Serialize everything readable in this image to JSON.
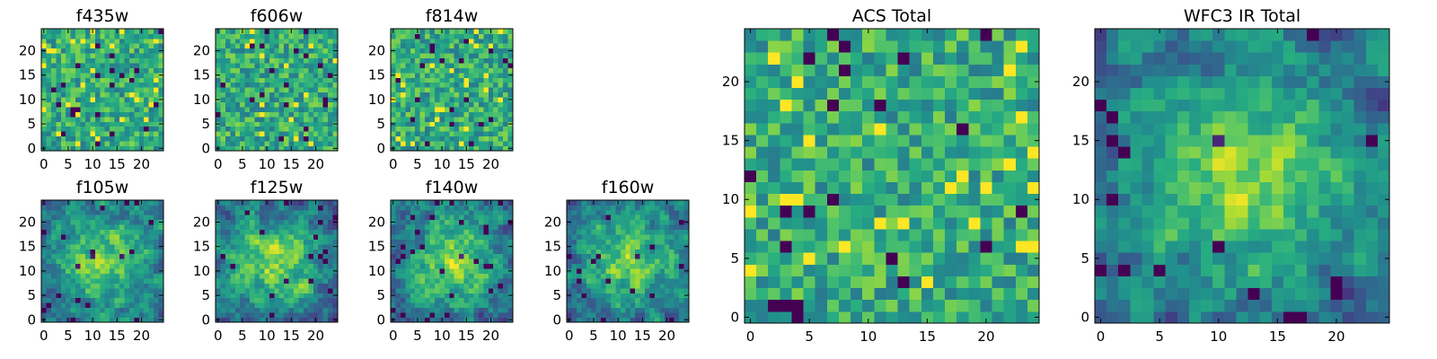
{
  "chart_data": [
    {
      "id": "f435w",
      "type": "heatmap",
      "title": "f435w",
      "rows": 25,
      "cols": 25,
      "xlim": [
        -0.5,
        24.5
      ],
      "ylim": [
        -0.5,
        24.5
      ],
      "xticks": [
        0,
        5,
        10,
        15,
        20
      ],
      "yticks": [
        0,
        5,
        10,
        15,
        20
      ],
      "colormap": "viridis",
      "structure": "noise",
      "seed": 11
    },
    {
      "id": "f606w",
      "type": "heatmap",
      "title": "f606w",
      "rows": 25,
      "cols": 25,
      "xlim": [
        -0.5,
        24.5
      ],
      "ylim": [
        -0.5,
        24.5
      ],
      "xticks": [
        0,
        5,
        10,
        15,
        20
      ],
      "yticks": [
        0,
        5,
        10,
        15,
        20
      ],
      "colormap": "viridis",
      "structure": "noise",
      "seed": 23
    },
    {
      "id": "f814w",
      "type": "heatmap",
      "title": "f814w",
      "rows": 25,
      "cols": 25,
      "xlim": [
        -0.5,
        24.5
      ],
      "ylim": [
        -0.5,
        24.5
      ],
      "xticks": [
        0,
        5,
        10,
        15,
        20
      ],
      "yticks": [
        0,
        5,
        10,
        15,
        20
      ],
      "colormap": "viridis",
      "structure": "noise",
      "seed": 37
    },
    {
      "id": "f105w",
      "type": "heatmap",
      "title": "f105w",
      "rows": 25,
      "cols": 25,
      "xlim": [
        -0.5,
        24.5
      ],
      "ylim": [
        -0.5,
        24.5
      ],
      "xticks": [
        0,
        5,
        10,
        15,
        20
      ],
      "yticks": [
        0,
        5,
        10,
        15,
        20
      ],
      "colormap": "viridis",
      "structure": "centered",
      "seed": 41
    },
    {
      "id": "f125w",
      "type": "heatmap",
      "title": "f125w",
      "rows": 25,
      "cols": 25,
      "xlim": [
        -0.5,
        24.5
      ],
      "ylim": [
        -0.5,
        24.5
      ],
      "xticks": [
        0,
        5,
        10,
        15,
        20
      ],
      "yticks": [
        0,
        5,
        10,
        15,
        20
      ],
      "colormap": "viridis",
      "structure": "centered",
      "seed": 53
    },
    {
      "id": "f140w",
      "type": "heatmap",
      "title": "f140w",
      "rows": 25,
      "cols": 25,
      "xlim": [
        -0.5,
        24.5
      ],
      "ylim": [
        -0.5,
        24.5
      ],
      "xticks": [
        0,
        5,
        10,
        15,
        20
      ],
      "yticks": [
        0,
        5,
        10,
        15,
        20
      ],
      "colormap": "viridis",
      "structure": "centered",
      "seed": 67
    },
    {
      "id": "f160w",
      "type": "heatmap",
      "title": "f160w",
      "rows": 25,
      "cols": 25,
      "xlim": [
        -0.5,
        24.5
      ],
      "ylim": [
        -0.5,
        24.5
      ],
      "xticks": [
        0,
        5,
        10,
        15,
        20
      ],
      "yticks": [
        0,
        5,
        10,
        15,
        20
      ],
      "colormap": "viridis",
      "structure": "centered",
      "seed": 79
    },
    {
      "id": "acs-total",
      "type": "heatmap",
      "title": "ACS Total",
      "rows": 25,
      "cols": 25,
      "xlim": [
        -0.5,
        24.5
      ],
      "ylim": [
        -0.5,
        24.5
      ],
      "xticks": [
        0,
        5,
        10,
        15,
        20
      ],
      "yticks": [
        0,
        5,
        10,
        15,
        20
      ],
      "colormap": "viridis",
      "structure": "noise",
      "seed": 97
    },
    {
      "id": "wfc3-ir-total",
      "type": "heatmap",
      "title": "WFC3 IR Total",
      "rows": 25,
      "cols": 25,
      "xlim": [
        -0.5,
        24.5
      ],
      "ylim": [
        -0.5,
        24.5
      ],
      "xticks": [
        0,
        5,
        10,
        15,
        20
      ],
      "yticks": [
        0,
        5,
        10,
        15,
        20
      ],
      "colormap": "viridis",
      "structure": "centered",
      "seed": 113
    }
  ]
}
